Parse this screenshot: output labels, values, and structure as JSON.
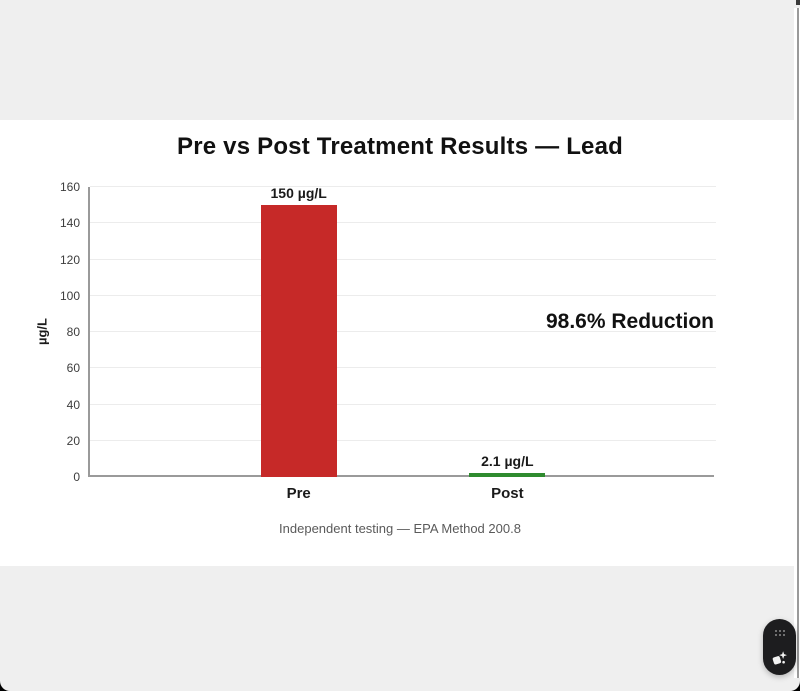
{
  "page": {
    "background_color": "#efefef",
    "slide_background": "#ffffff"
  },
  "chart_data": {
    "type": "bar",
    "title": "Pre vs Post Treatment Results — Lead",
    "categories": [
      "Pre",
      "Post"
    ],
    "values": [
      150,
      2.1
    ],
    "bar_labels": [
      "150 µg/L",
      "2.1 µg/L"
    ],
    "bar_colors": [
      "#c62928",
      "#2e8b2e"
    ],
    "xlabel": "",
    "ylabel": "µg/L",
    "ylim": [
      0,
      160
    ],
    "yticks": [
      0,
      20,
      40,
      60,
      80,
      100,
      120,
      140,
      160
    ],
    "grid": true,
    "legend": "none",
    "annotation": "98.6% Reduction",
    "caption": "Independent testing — EPA Method 200.8"
  },
  "ui": {
    "floating_widget_icons": [
      "drag-handle-dots-icon",
      "sparkle-icon"
    ]
  }
}
